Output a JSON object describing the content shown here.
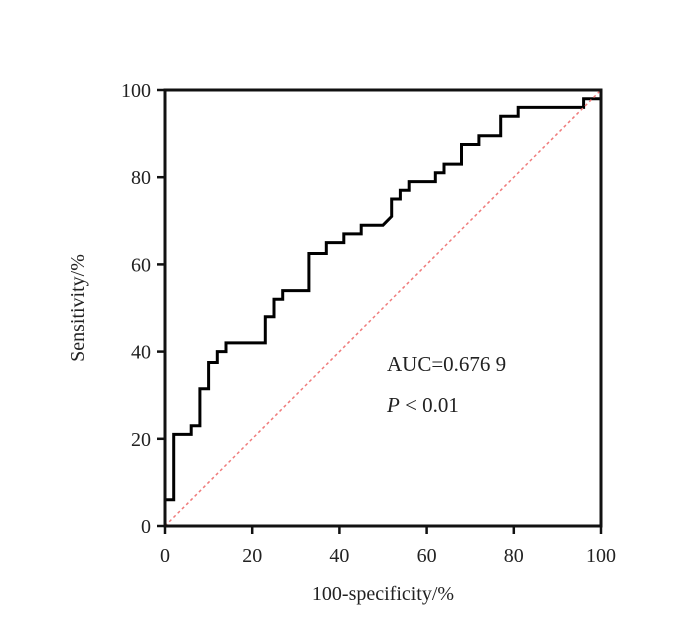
{
  "chart_data": {
    "type": "line",
    "xlabel": "100-specificity/%",
    "ylabel": "Sensitivity/%",
    "xlim": [
      0,
      100
    ],
    "ylim": [
      0,
      100
    ],
    "xticks": [
      "0",
      "20",
      "40",
      "60",
      "80",
      "100"
    ],
    "yticks": [
      "0",
      "20",
      "40",
      "60",
      "80",
      "100"
    ],
    "grid": false,
    "annotations": {
      "auc": "AUC=0.676 9",
      "p_italic": "P",
      "p_rest": " < 0.01"
    },
    "series": [
      {
        "kind": "roc-step",
        "color": "#000000",
        "points": [
          [
            0,
            0
          ],
          [
            0,
            6
          ],
          [
            2,
            6
          ],
          [
            2,
            21
          ],
          [
            6,
            21
          ],
          [
            6,
            23
          ],
          [
            8,
            23
          ],
          [
            8,
            31.5
          ],
          [
            10,
            31.5
          ],
          [
            10,
            37.5
          ],
          [
            12,
            37.5
          ],
          [
            12,
            40
          ],
          [
            14,
            40
          ],
          [
            14,
            42
          ],
          [
            23,
            42
          ],
          [
            23,
            48
          ],
          [
            25,
            48
          ],
          [
            25,
            52
          ],
          [
            27,
            52
          ],
          [
            27,
            54
          ],
          [
            33,
            54
          ],
          [
            33,
            62.5
          ],
          [
            37,
            62.5
          ],
          [
            37,
            65
          ],
          [
            41,
            65
          ],
          [
            41,
            67
          ],
          [
            45,
            67
          ],
          [
            45,
            69
          ],
          [
            50,
            69
          ],
          [
            52,
            71
          ],
          [
            52,
            75
          ],
          [
            54,
            75
          ],
          [
            54,
            77
          ],
          [
            56,
            77
          ],
          [
            56,
            79
          ],
          [
            62,
            79
          ],
          [
            62,
            81
          ],
          [
            64,
            81
          ],
          [
            64,
            83
          ],
          [
            68,
            83
          ],
          [
            68,
            87.5
          ],
          [
            72,
            87.5
          ],
          [
            72,
            89.5
          ],
          [
            77,
            89.5
          ],
          [
            77,
            94
          ],
          [
            81,
            94
          ],
          [
            81,
            96
          ],
          [
            96,
            96
          ],
          [
            96,
            98
          ],
          [
            100,
            98
          ],
          [
            100,
            100
          ]
        ]
      },
      {
        "kind": "reference",
        "color": "#ef7b7b",
        "points": [
          [
            0,
            0
          ],
          [
            100,
            100
          ]
        ]
      }
    ]
  }
}
